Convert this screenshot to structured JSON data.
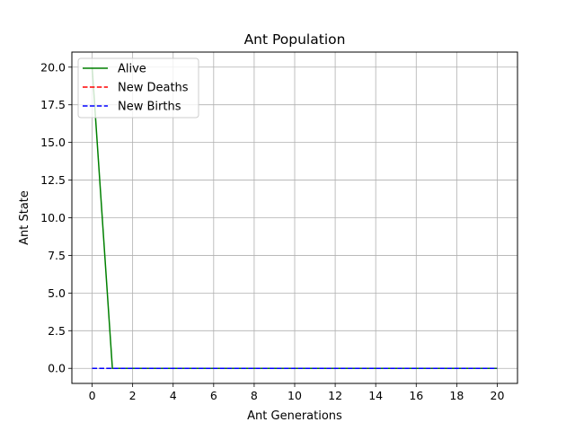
{
  "chart_data": {
    "type": "line",
    "title": "Ant Population",
    "xlabel": "Ant Generations",
    "ylabel": "Ant State",
    "xlim": [
      -1,
      21
    ],
    "ylim": [
      -1,
      21
    ],
    "xticks": [
      0,
      2,
      4,
      6,
      8,
      10,
      12,
      14,
      16,
      18,
      20
    ],
    "yticks": [
      0.0,
      2.5,
      5.0,
      7.5,
      10.0,
      12.5,
      15.0,
      17.5,
      20.0
    ],
    "ytick_labels": [
      "0.0",
      "2.5",
      "5.0",
      "7.5",
      "10.0",
      "12.5",
      "15.0",
      "17.5",
      "20.0"
    ],
    "grid": true,
    "legend_position": "top-left",
    "x": [
      0,
      1,
      2,
      3,
      4,
      5,
      6,
      7,
      8,
      9,
      10,
      11,
      12,
      13,
      14,
      15,
      16,
      17,
      18,
      19,
      20
    ],
    "series": [
      {
        "name": "Alive",
        "color": "#008000",
        "dash": "solid",
        "values": [
          20,
          0,
          0,
          0,
          0,
          0,
          0,
          0,
          0,
          0,
          0,
          0,
          0,
          0,
          0,
          0,
          0,
          0,
          0,
          0,
          0
        ]
      },
      {
        "name": "New Deaths",
        "color": "#ff0000",
        "dash": "dashed",
        "values": [
          0,
          0,
          0,
          0,
          0,
          0,
          0,
          0,
          0,
          0,
          0,
          0,
          0,
          0,
          0,
          0,
          0,
          0,
          0,
          0,
          0
        ]
      },
      {
        "name": "New Births",
        "color": "#0000ff",
        "dash": "dashed",
        "values": [
          0,
          0,
          0,
          0,
          0,
          0,
          0,
          0,
          0,
          0,
          0,
          0,
          0,
          0,
          0,
          0,
          0,
          0,
          0,
          0,
          0
        ]
      }
    ]
  }
}
